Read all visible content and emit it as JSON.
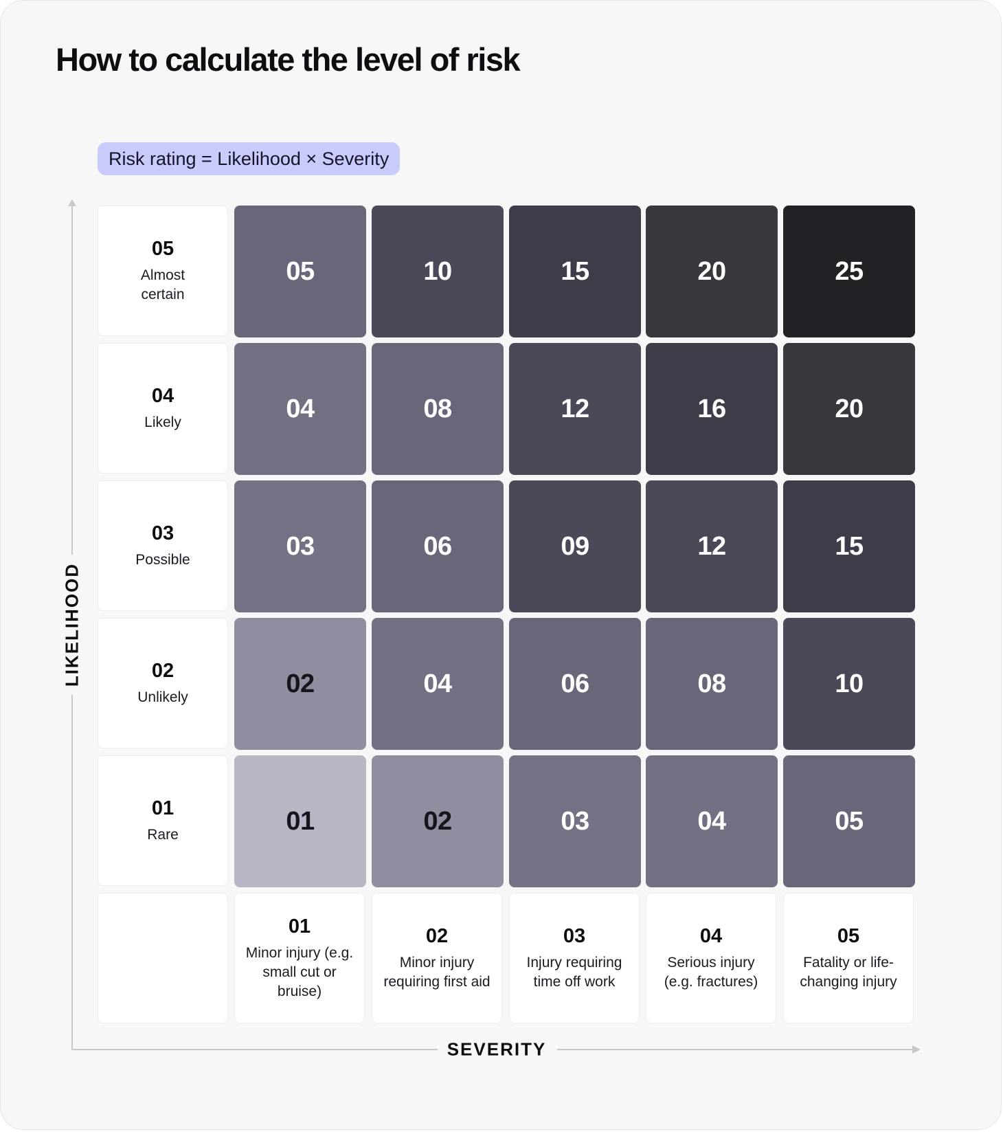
{
  "title": "How to calculate the level of risk",
  "formula": "Risk rating = Likelihood × Severity",
  "axes": {
    "y_label": "LIKELIHOOD",
    "x_label": "SEVERITY"
  },
  "likelihood": [
    {
      "num": "01",
      "label": "Rare"
    },
    {
      "num": "02",
      "label": "Unlikely"
    },
    {
      "num": "03",
      "label": "Possible"
    },
    {
      "num": "04",
      "label": "Likely"
    },
    {
      "num": "05",
      "label": "Almost certain"
    }
  ],
  "severity": [
    {
      "num": "01",
      "label": "Minor injury (e.g. small cut or bruise)"
    },
    {
      "num": "02",
      "label": "Minor injury requiring first aid"
    },
    {
      "num": "03",
      "label": "Injury requiring time off work"
    },
    {
      "num": "04",
      "label": "Serious injury (e.g. fractures)"
    },
    {
      "num": "05",
      "label": "Fatality or life-changing injury"
    }
  ],
  "matrix": [
    [
      "01",
      "02",
      "03",
      "04",
      "05"
    ],
    [
      "02",
      "04",
      "06",
      "08",
      "10"
    ],
    [
      "03",
      "06",
      "09",
      "12",
      "15"
    ],
    [
      "04",
      "08",
      "12",
      "16",
      "20"
    ],
    [
      "05",
      "10",
      "15",
      "20",
      "25"
    ]
  ],
  "colors": {
    "1": "#b7b6c4",
    "2": "#8f8ea0",
    "3": "#737285",
    "4": "#727184",
    "5": "#686679",
    "6": "#686679",
    "8": "#686679",
    "9": "#4a4958",
    "10": "#4a4958",
    "12": "#4a4958",
    "15": "#3d3c48",
    "16": "#3d3c48",
    "20": "#37373d",
    "25": "#222226",
    "text_dark": "#15151c",
    "text_light": "#ffffff"
  }
}
